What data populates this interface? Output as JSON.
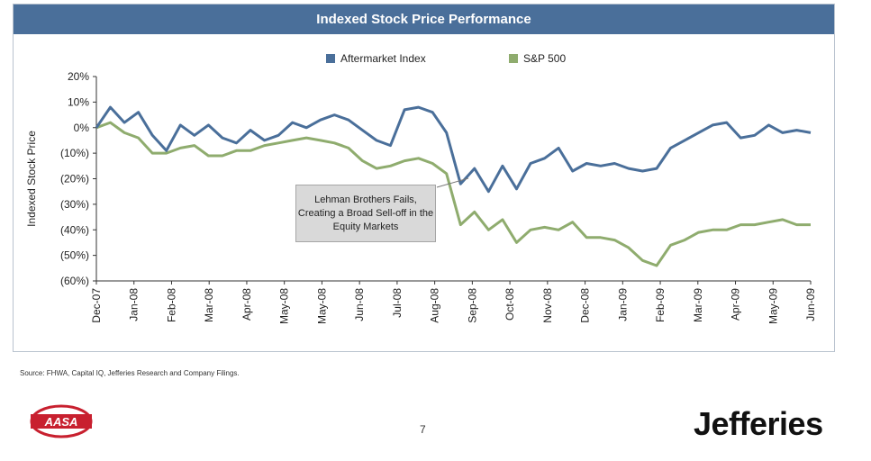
{
  "chart_data": {
    "type": "line",
    "title": "Indexed Stock Price Performance",
    "ylabel": "Indexed Stock Price",
    "ylim": [
      -60,
      20
    ],
    "yticks": [
      "20%",
      "10%",
      "0%",
      "(10%)",
      "(20%)",
      "(30%)",
      "(40%)",
      "(50%)",
      "(60%)"
    ],
    "xticks": [
      "Dec-07",
      "Jan-08",
      "Feb-08",
      "Mar-08",
      "Apr-08",
      "May-08",
      "May-08",
      "Jun-08",
      "Jul-08",
      "Aug-08",
      "Sep-08",
      "Oct-08",
      "Nov-08",
      "Dec-08",
      "Jan-09",
      "Feb-09",
      "Mar-09",
      "Apr-09",
      "May-09",
      "Jun-09"
    ],
    "legend_position": "top",
    "series": [
      {
        "name": "Aftermarket Index",
        "color": "#4a6f9a",
        "values": [
          0,
          8,
          2,
          6,
          -3,
          -9,
          1,
          -3,
          1,
          -4,
          -6,
          -1,
          -5,
          -3,
          2,
          0,
          3,
          5,
          3,
          -1,
          -5,
          -7,
          7,
          8,
          6,
          -2,
          -22,
          -16,
          -25,
          -15,
          -24,
          -14,
          -12,
          -8,
          -17,
          -14,
          -15,
          -14,
          -16,
          -17,
          -16,
          -8,
          -5,
          -2,
          1,
          2,
          -4,
          -3,
          1,
          -2,
          -1,
          -2
        ]
      },
      {
        "name": "S&P 500",
        "color": "#8fac6e",
        "values": [
          0,
          2,
          -2,
          -4,
          -10,
          -10,
          -8,
          -7,
          -11,
          -11,
          -9,
          -9,
          -7,
          -6,
          -5,
          -4,
          -5,
          -6,
          -8,
          -13,
          -16,
          -15,
          -13,
          -12,
          -14,
          -18,
          -38,
          -33,
          -40,
          -36,
          -45,
          -40,
          -39,
          -40,
          -37,
          -43,
          -43,
          -44,
          -47,
          -52,
          -54,
          -46,
          -44,
          -41,
          -40,
          -40,
          -38,
          -38,
          -37,
          -36,
          -38,
          -38
        ]
      }
    ],
    "annotation": "Lehman Brothers Fails, Creating a Broad Sell-off in the Equity Markets"
  },
  "footer": {
    "source": "Source:  FHWA, Capital IQ, Jefferies Research and Company Filings.",
    "page_number": "7",
    "brand": "Jefferies",
    "logo_text": "AASA"
  }
}
